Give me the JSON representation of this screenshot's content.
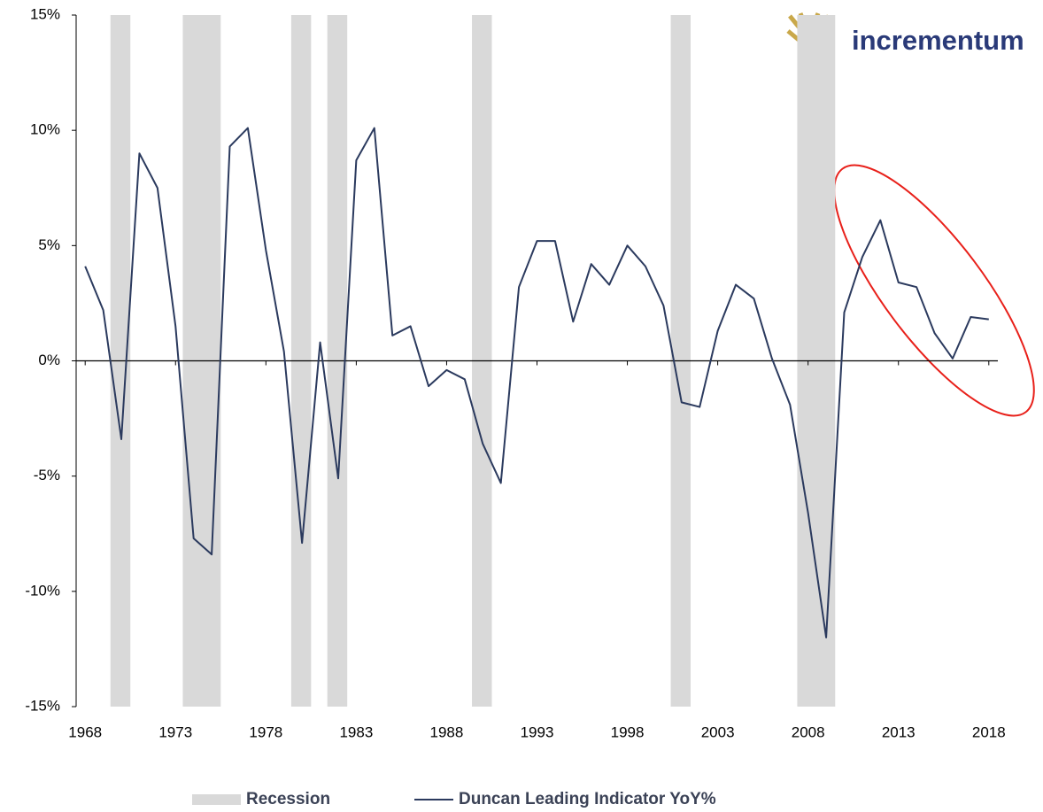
{
  "logo": "incrementum",
  "chart_data": {
    "type": "line",
    "x": [
      1968,
      1969,
      1970,
      1971,
      1972,
      1973,
      1974,
      1975,
      1976,
      1977,
      1978,
      1979,
      1980,
      1981,
      1982,
      1983,
      1984,
      1985,
      1986,
      1987,
      1988,
      1989,
      1990,
      1991,
      1992,
      1993,
      1994,
      1995,
      1996,
      1997,
      1998,
      1999,
      2000,
      2001,
      2002,
      2003,
      2004,
      2005,
      2006,
      2007,
      2008,
      2009,
      2010,
      2011,
      2012,
      2013,
      2014,
      2015,
      2016,
      2017,
      2018
    ],
    "series": [
      {
        "name": "Duncan Leading Indicator YoY%",
        "color": "#2b3a5e",
        "values": [
          4.1,
          2.2,
          -3.4,
          9.0,
          7.5,
          1.5,
          -7.7,
          -8.4,
          9.3,
          10.1,
          4.8,
          0.4,
          -7.9,
          0.8,
          -5.1,
          8.7,
          10.1,
          1.1,
          1.5,
          -1.1,
          -0.4,
          -0.8,
          -3.6,
          -5.3,
          3.2,
          5.2,
          5.2,
          1.7,
          4.2,
          3.3,
          5.0,
          4.1,
          2.4,
          -1.8,
          -2.0,
          1.3,
          3.3,
          2.7,
          0.1,
          -1.9,
          -6.6,
          -12.0,
          2.1,
          4.5,
          6.1,
          3.4,
          3.2,
          1.2,
          0.1,
          1.9,
          1.8
        ]
      }
    ],
    "recessions": {
      "name": "Recession",
      "color": "#d9d9d9",
      "periods": [
        [
          1969.4,
          1970.5
        ],
        [
          1973.4,
          1975.5
        ],
        [
          1979.4,
          1980.5
        ],
        [
          1981.4,
          1982.5
        ],
        [
          1989.4,
          1990.5
        ],
        [
          2000.4,
          2001.5
        ],
        [
          2007.4,
          2009.5
        ]
      ]
    },
    "xlim": [
      1967.5,
      2018.5
    ],
    "xticks": [
      1968,
      1973,
      1978,
      1983,
      1988,
      1993,
      1998,
      2003,
      2008,
      2013,
      2018
    ],
    "ylim": [
      -15,
      15
    ],
    "yticks": [
      {
        "value": -15,
        "label": "-15%"
      },
      {
        "value": -10,
        "label": "-10%"
      },
      {
        "value": -5,
        "label": "-5%"
      },
      {
        "value": 0,
        "label": "0%"
      },
      {
        "value": 5,
        "label": "5%"
      },
      {
        "value": 10,
        "label": "10%"
      },
      {
        "value": 15,
        "label": "15%"
      }
    ]
  }
}
